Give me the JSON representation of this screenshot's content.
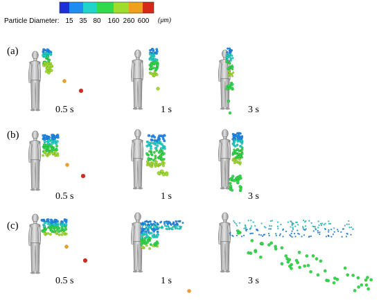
{
  "legend": {
    "title": "Particle Diameter:",
    "unit": "(μm)",
    "ticks": [
      "15",
      "35",
      "80",
      "160",
      "260",
      "600"
    ],
    "colors": [
      "#1e2fd6",
      "#1f8cf0",
      "#21d3c8",
      "#32d94a",
      "#9fdc2e",
      "#f0a020",
      "#d52a1a"
    ]
  },
  "rows": [
    {
      "label": "(a)",
      "times": [
        "0.5 s",
        "1 s",
        "3 s"
      ]
    },
    {
      "label": "(b)",
      "times": [
        "0.5 s",
        "1 s",
        "3 s"
      ]
    },
    {
      "label": "(c)",
      "times": [
        "0.5 s",
        "1 s",
        "3 s"
      ]
    }
  ]
}
